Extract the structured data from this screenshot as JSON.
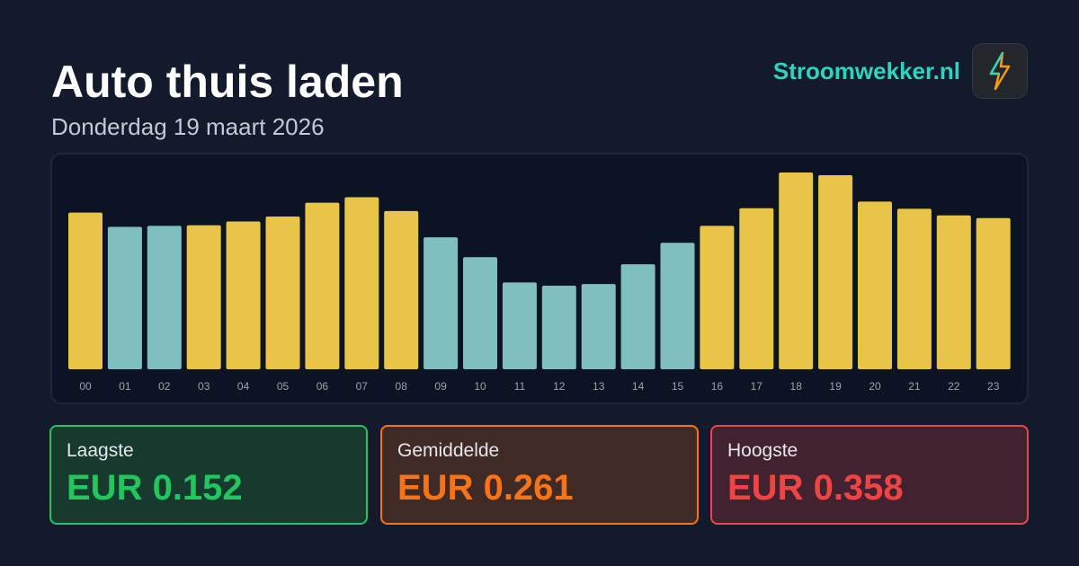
{
  "header": {
    "title": "Auto thuis laden",
    "subtitle": "Donderdag 19 maart 2026",
    "brand": "Stroomwekker.nl"
  },
  "chart_data": {
    "type": "bar",
    "categories": [
      "00",
      "01",
      "02",
      "03",
      "04",
      "05",
      "06",
      "07",
      "08",
      "09",
      "10",
      "11",
      "12",
      "13",
      "14",
      "15",
      "16",
      "17",
      "18",
      "19",
      "20",
      "21",
      "22",
      "23"
    ],
    "values": [
      0.285,
      0.259,
      0.261,
      0.262,
      0.269,
      0.278,
      0.303,
      0.313,
      0.288,
      0.24,
      0.204,
      0.158,
      0.152,
      0.155,
      0.191,
      0.23,
      0.261,
      0.293,
      0.358,
      0.353,
      0.305,
      0.292,
      0.28,
      0.275
    ],
    "colors": [
      "#e8c547",
      "#7fbfbf",
      "#7fbfbf",
      "#e8c547",
      "#e8c547",
      "#e8c547",
      "#e8c547",
      "#e8c547",
      "#e8c547",
      "#7fbfbf",
      "#7fbfbf",
      "#7fbfbf",
      "#7fbfbf",
      "#7fbfbf",
      "#7fbfbf",
      "#7fbfbf",
      "#e8c547",
      "#e8c547",
      "#e8c547",
      "#e8c547",
      "#e8c547",
      "#e8c547",
      "#e8c547",
      "#e8c547"
    ]
  },
  "stats": [
    {
      "label": "Laagste",
      "value": "EUR 0.152"
    },
    {
      "label": "Gemiddelde",
      "value": "EUR 0.261"
    },
    {
      "label": "Hoogste",
      "value": "EUR 0.358"
    }
  ]
}
